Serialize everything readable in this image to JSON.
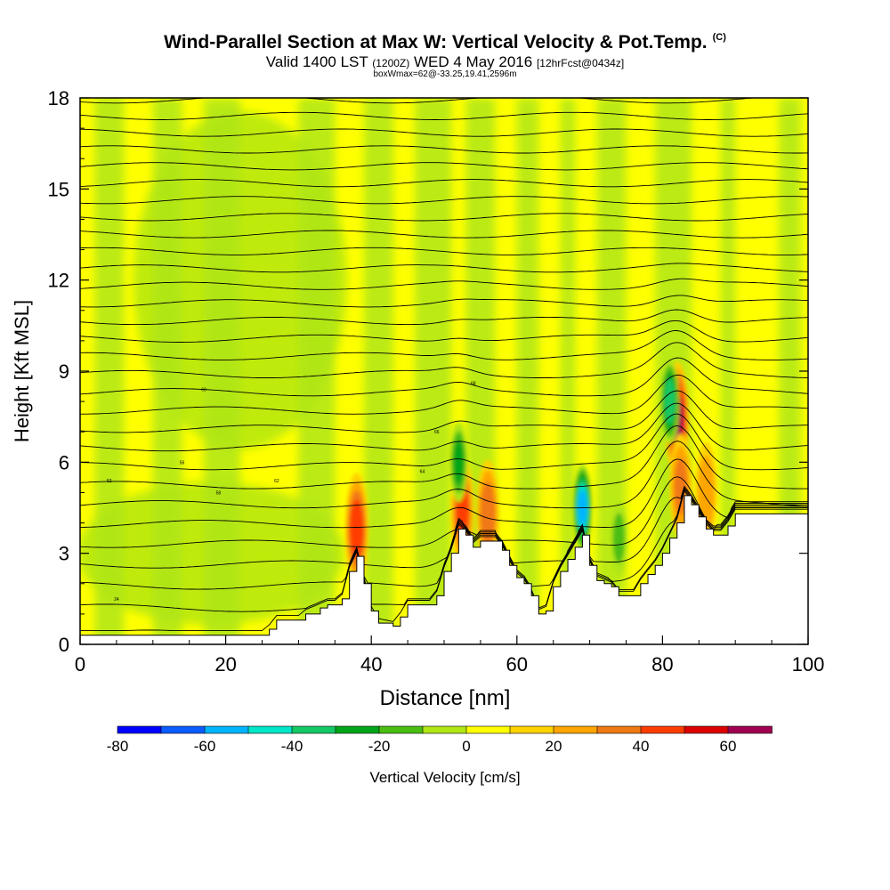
{
  "title": {
    "main": "Wind-Parallel Section at Max W: Vertical Velocity & Pot.Temp.",
    "copyright": "(C)",
    "valid_a": "Valid 1400 LST",
    "valid_b": "(1200Z)",
    "valid_c": "WED 4 May 2016",
    "valid_d": "[12hrFcst@0434z]",
    "box": "boxWmax=62@-33.25,19.41,2596m"
  },
  "chart_data": {
    "type": "heatmap",
    "xlabel": "Distance [nm]",
    "ylabel": "Height [Kft MSL]",
    "xlim": [
      0,
      100
    ],
    "ylim": [
      0,
      18
    ],
    "xticks": [
      0,
      20,
      40,
      60,
      80,
      100
    ],
    "yticks": [
      0,
      3,
      6,
      9,
      12,
      15,
      18
    ],
    "field": "Vertical Velocity (filled) & Potential Temperature (contours)",
    "terrain_kft": [
      [
        0,
        0.3
      ],
      [
        25,
        0.3
      ],
      [
        26,
        0.5
      ],
      [
        27,
        0.8
      ],
      [
        30,
        0.8
      ],
      [
        31,
        1.0
      ],
      [
        33,
        1.2
      ],
      [
        34,
        1.3
      ],
      [
        35,
        1.3
      ],
      [
        36,
        1.5
      ],
      [
        37,
        2.4
      ],
      [
        38,
        2.9
      ],
      [
        39,
        2.0
      ],
      [
        40,
        1.1
      ],
      [
        41,
        0.7
      ],
      [
        43,
        0.6
      ],
      [
        44,
        0.9
      ],
      [
        45,
        1.3
      ],
      [
        48,
        1.3
      ],
      [
        49,
        1.6
      ],
      [
        50,
        2.4
      ],
      [
        51,
        3.0
      ],
      [
        52,
        3.8
      ],
      [
        53,
        3.6
      ],
      [
        54,
        3.2
      ],
      [
        55,
        3.4
      ],
      [
        57,
        3.4
      ],
      [
        58,
        3.1
      ],
      [
        59,
        2.6
      ],
      [
        60,
        2.2
      ],
      [
        61,
        2.0
      ],
      [
        62,
        1.6
      ],
      [
        63,
        1.0
      ],
      [
        64,
        1.1
      ],
      [
        65,
        1.9
      ],
      [
        66,
        2.4
      ],
      [
        67,
        2.8
      ],
      [
        68,
        3.2
      ],
      [
        69,
        3.6
      ],
      [
        70,
        2.6
      ],
      [
        71,
        2.1
      ],
      [
        72,
        2.0
      ],
      [
        73,
        1.9
      ],
      [
        74,
        1.6
      ],
      [
        76,
        1.6
      ],
      [
        77,
        2.0
      ],
      [
        78,
        2.3
      ],
      [
        79,
        2.6
      ],
      [
        80,
        3.0
      ],
      [
        81,
        3.5
      ],
      [
        82,
        4.0
      ],
      [
        83,
        4.9
      ],
      [
        84,
        4.6
      ],
      [
        85,
        4.2
      ],
      [
        86,
        3.8
      ],
      [
        87,
        3.6
      ],
      [
        88,
        3.6
      ],
      [
        89,
        3.9
      ],
      [
        90,
        4.3
      ],
      [
        100,
        4.3
      ]
    ],
    "updrafts": [
      {
        "x": 38.0,
        "z": 3.8,
        "w": 45
      },
      {
        "x": 52.5,
        "z": 4.4,
        "w": 40
      },
      {
        "x": 56.0,
        "z": 4.3,
        "w": 35
      },
      {
        "x": 82.0,
        "z": 7.4,
        "w": 62
      },
      {
        "x": 82.5,
        "z": 5.2,
        "w": 30
      },
      {
        "x": 86.0,
        "z": 5.0,
        "w": 25
      }
    ],
    "downdrafts": [
      {
        "x": 69.0,
        "z": 4.5,
        "w": -60
      },
      {
        "x": 81.0,
        "z": 8.0,
        "w": -45
      },
      {
        "x": 52.0,
        "z": 6.0,
        "w": -30
      },
      {
        "x": 74.0,
        "z": 3.5,
        "w": -20
      }
    ],
    "theta_contours": {
      "count": 30,
      "labels": [
        "24",
        "52",
        "56",
        "58",
        "60",
        "62",
        "64",
        "66",
        "68"
      ]
    },
    "colorbar": {
      "title": "Vertical Velocity [cm/s]",
      "ticks": [
        "-80",
        "-60",
        "-40",
        "-20",
        "0",
        "20",
        "40",
        "60"
      ],
      "colors": [
        "#0000ff",
        "#0a5cff",
        "#00b4ff",
        "#00e6c8",
        "#14c864",
        "#00a519",
        "#4bbe14",
        "#afe614",
        "#ffff00",
        "#ffd200",
        "#ffa500",
        "#f07814",
        "#ff3c00",
        "#dc0000",
        "#a00050"
      ]
    }
  }
}
